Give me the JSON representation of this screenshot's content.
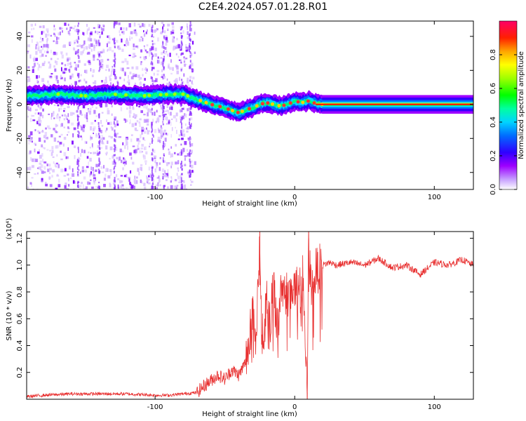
{
  "title": "C2E4.2024.057.01.28.R01",
  "chart_data": [
    {
      "type": "heatmap",
      "xlabel": "Height of straight line (km)",
      "ylabel": "Frequency (Hz)",
      "xlim": [
        -192,
        128
      ],
      "ylim": [
        -50,
        49
      ],
      "xticks": [
        -100,
        0,
        100
      ],
      "xtick_labels": [
        "-100",
        "0",
        "100"
      ],
      "yticks": [
        -40,
        -20,
        0,
        20,
        40
      ],
      "ytick_labels": [
        "-40",
        "-20",
        "0",
        "20",
        "40"
      ],
      "colorbar": {
        "label": "Normalized spectral amplitude",
        "range": [
          0.0,
          1.0
        ],
        "ticks": [
          0.0,
          0.2,
          0.4,
          0.6,
          0.8
        ],
        "tick_labels": [
          "0.0",
          "0.2",
          "0.4",
          "0.6",
          "0.8"
        ],
        "colors": [
          "#ffffff",
          "#9d00ff",
          "#2f00ff",
          "#006dff",
          "#00d4ff",
          "#00ffa0",
          "#00ff00",
          "#a0ff00",
          "#ffff00",
          "#ffa500",
          "#ff4000",
          "#ff0000",
          "#ff0066"
        ]
      },
      "ridge_center_hz": {
        "x": [
          -190,
          -170,
          -150,
          -130,
          -110,
          -90,
          -80,
          -70,
          -60,
          -50,
          -40,
          -35,
          -30,
          -25,
          -20,
          -15,
          -10,
          -5,
          0,
          5,
          10,
          15,
          20,
          40,
          60,
          80,
          100,
          128
        ],
        "y": [
          5,
          6,
          5,
          6,
          5,
          6,
          6,
          3,
          0,
          -2,
          -5,
          -3,
          -2,
          0,
          1,
          0,
          -1,
          0,
          2,
          1,
          2,
          0.5,
          0,
          0,
          0,
          0,
          0,
          0
        ]
      },
      "noise_region_km": [
        -192,
        -72
      ]
    },
    {
      "type": "line",
      "xlabel": "Height of straight line (km)",
      "ylabel": "SNR (10 * v/v)",
      "y_multiplier": "(x10⁴)",
      "xlim": [
        -192,
        128
      ],
      "ylim": [
        0,
        1.25
      ],
      "xticks": [
        -100,
        0,
        100
      ],
      "xtick_labels": [
        "-100",
        "0",
        "100"
      ],
      "yticks": [
        0.2,
        0.4,
        0.6,
        0.8,
        1.0,
        1.2
      ],
      "ytick_labels": [
        "0.2",
        "0.4",
        "0.6",
        "0.8",
        "1.0",
        "1.2"
      ],
      "series": [
        {
          "color": "#e83030",
          "x": [
            -192,
            -180,
            -160,
            -140,
            -120,
            -100,
            -90,
            -80,
            -70,
            -65,
            -60,
            -55,
            -50,
            -45,
            -40,
            -35,
            -30,
            -28,
            -26,
            -25,
            -24,
            -22,
            -20,
            -18,
            -15,
            -12,
            -10,
            -8,
            -5,
            -2,
            0,
            3,
            6,
            8,
            9,
            10,
            11,
            12,
            15,
            20,
            25,
            30,
            40,
            50,
            60,
            70,
            80,
            90,
            100,
            110,
            120,
            128
          ],
          "y": [
            0.02,
            0.03,
            0.04,
            0.04,
            0.04,
            0.03,
            0.03,
            0.04,
            0.05,
            0.1,
            0.14,
            0.18,
            0.15,
            0.22,
            0.18,
            0.28,
            0.7,
            0.45,
            0.95,
            1.25,
            0.6,
            0.5,
            0.75,
            0.55,
            0.9,
            0.45,
            0.85,
            0.8,
            0.78,
            0.85,
            0.82,
            0.8,
            0.92,
            0.3,
            0.05,
            1.2,
            0.95,
            0.8,
            0.95,
            1.0,
            1.02,
            1.0,
            1.02,
            1.0,
            1.05,
            0.98,
            1.0,
            0.93,
            1.02,
            1.0,
            1.04,
            1.0
          ]
        }
      ]
    }
  ]
}
